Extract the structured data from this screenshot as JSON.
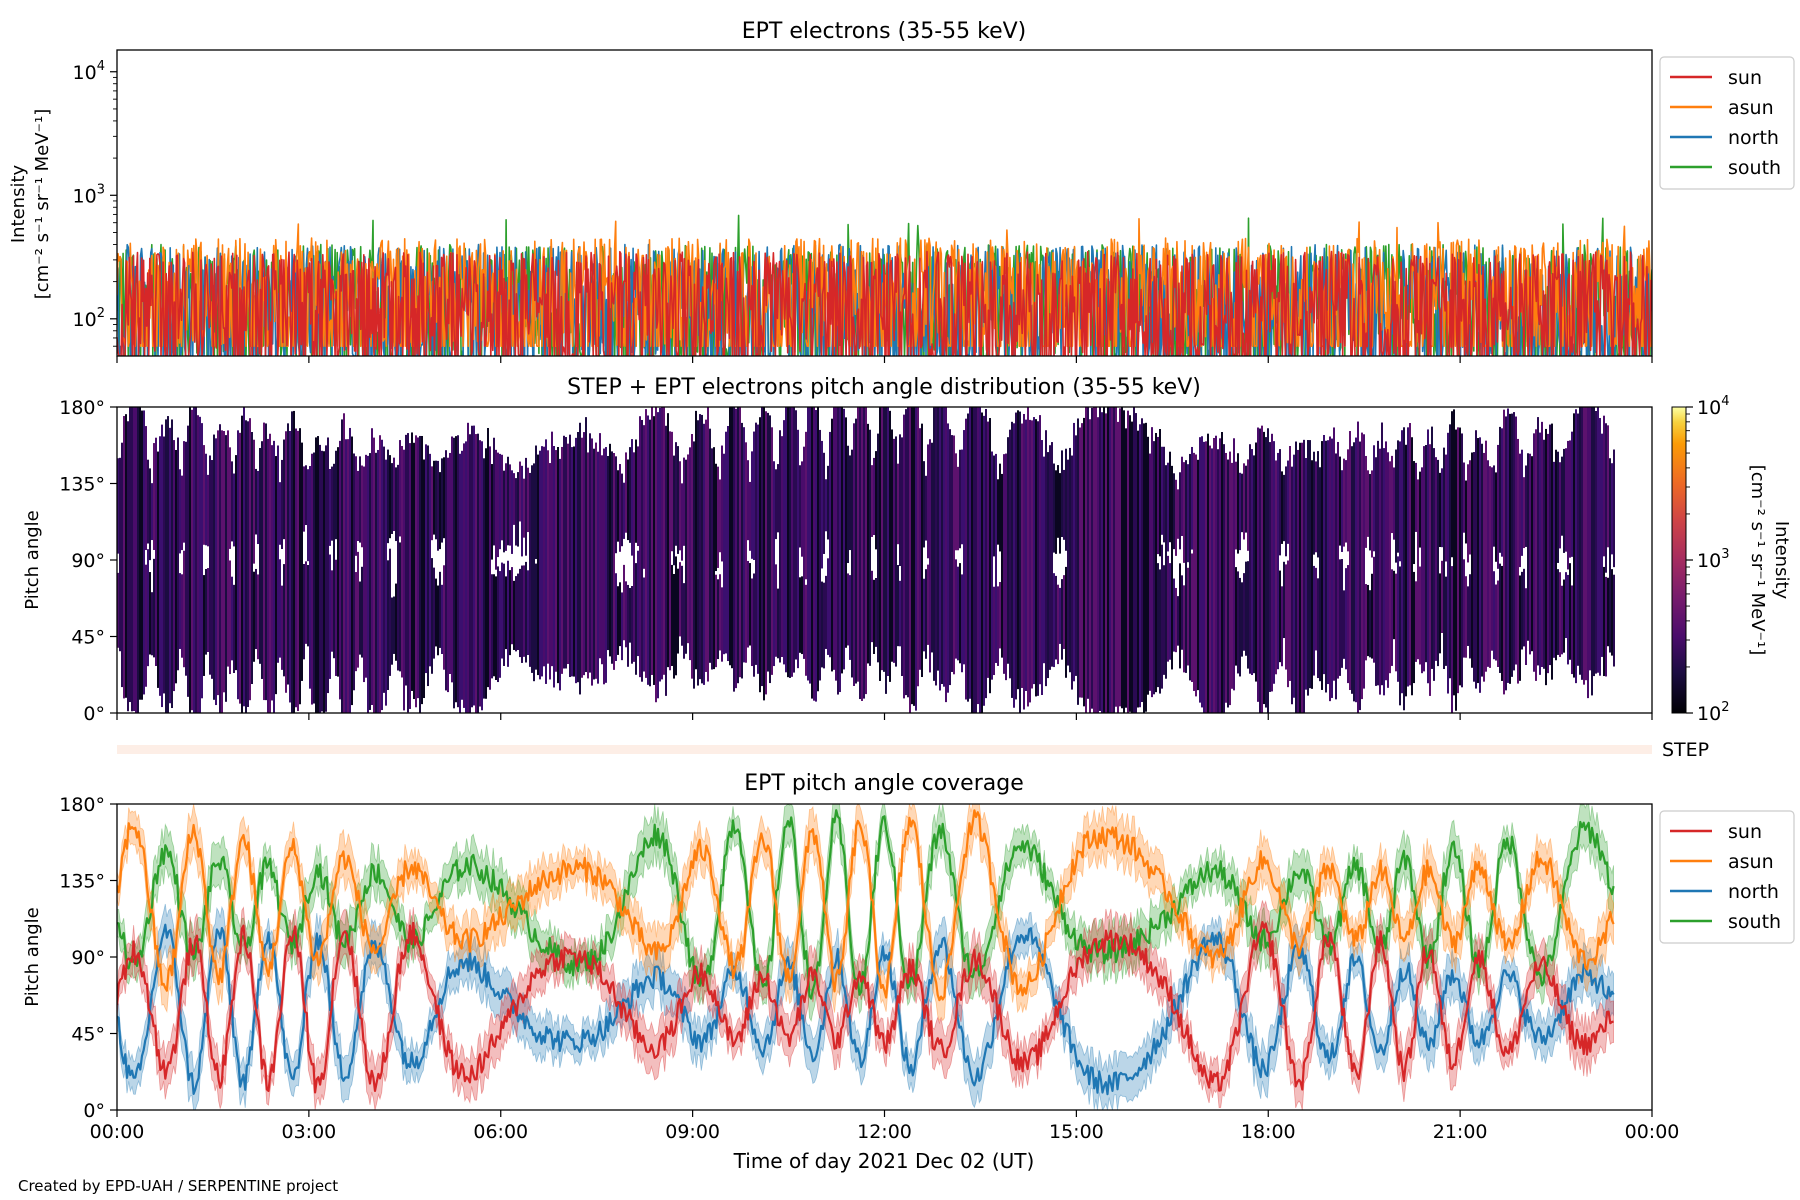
{
  "figure": {
    "credit": "Created by EPD-UAH / SERPENTINE project",
    "xlabel": "Time of day 2021 Dec 02 (UT)",
    "xticks": [
      "00:00",
      "03:00",
      "06:00",
      "09:00",
      "12:00",
      "15:00",
      "18:00",
      "21:00",
      "00:00"
    ]
  },
  "colors": {
    "sun": "#d62728",
    "asun": "#ff7f0e",
    "north": "#1f77b4",
    "south": "#2ca02c"
  },
  "chart_data": [
    {
      "id": "intensity",
      "type": "line",
      "title": "EPT electrons (35-55 keV)",
      "ylabel_line1": "Intensity",
      "ylabel_line2": "[cm⁻² s⁻¹ sr⁻¹ MeV⁻¹]",
      "yscale": "log",
      "ylim": [
        50,
        15000
      ],
      "xlim_hours": [
        0,
        24
      ],
      "y_ticks": [
        {
          "base": "10",
          "exp": "2",
          "value": 100
        },
        {
          "base": "10",
          "exp": "3",
          "value": 1000
        },
        {
          "base": "10",
          "exp": "4",
          "value": 10000
        }
      ],
      "legend": {
        "placement": "right",
        "entries": [
          "sun",
          "asun",
          "north",
          "south"
        ]
      },
      "series": [
        {
          "name": "sun",
          "typical_range": [
            50,
            350
          ]
        },
        {
          "name": "asun",
          "typical_range": [
            60,
            450
          ],
          "max": 650
        },
        {
          "name": "north",
          "typical_range": [
            50,
            400
          ]
        },
        {
          "name": "south",
          "typical_range": [
            50,
            400
          ],
          "max": 700
        }
      ]
    },
    {
      "id": "pad",
      "type": "heatmap",
      "title": "STEP + EPT electrons pitch angle distribution (35-55 keV)",
      "ylabel": "Pitch angle",
      "y_ticks": [
        "0°",
        "45°",
        "90°",
        "135°",
        "180°"
      ],
      "ylim": [
        0,
        180
      ],
      "xlim_hours": [
        0,
        24
      ],
      "data_end_hours": 23.4,
      "colorbar": {
        "scale": "log",
        "range": [
          100,
          10000
        ],
        "label_line1": "Intensity",
        "label_line2": "[cm⁻² s⁻¹ sr⁻¹ MeV⁻¹]",
        "ticks": [
          {
            "base": "10",
            "exp": "2"
          },
          {
            "base": "10",
            "exp": "3"
          },
          {
            "base": "10",
            "exp": "4"
          }
        ]
      },
      "step_label": "STEP"
    },
    {
      "id": "coverage",
      "type": "line",
      "title": "EPT pitch angle coverage",
      "ylabel": "Pitch angle",
      "y_ticks": [
        "0°",
        "45°",
        "90°",
        "135°",
        "180°"
      ],
      "ylim": [
        0,
        180
      ],
      "xlim_hours": [
        0,
        24
      ],
      "data_end_hours": 23.4,
      "legend": {
        "placement": "right",
        "entries": [
          "sun",
          "asun",
          "north",
          "south"
        ]
      },
      "series": [
        {
          "name": "sun",
          "mean_deg": 60
        },
        {
          "name": "asun",
          "mean_deg": 120
        },
        {
          "name": "north",
          "mean_deg": 60
        },
        {
          "name": "south",
          "mean_deg": 120
        }
      ]
    }
  ]
}
